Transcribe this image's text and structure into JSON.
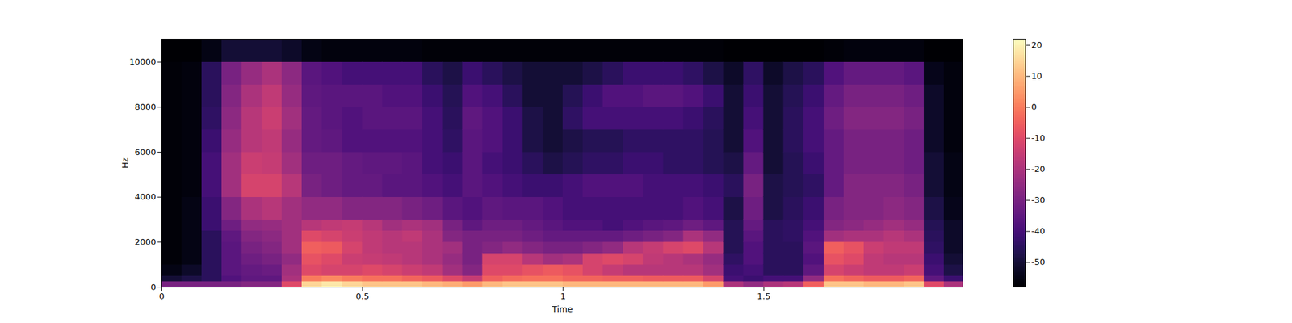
{
  "chart_data": {
    "type": "heatmap",
    "x_label": "Time",
    "y_label": "Hz",
    "xlim": [
      0,
      1.996
    ],
    "ylim": [
      0,
      11025
    ],
    "xticks": [
      0,
      0.5,
      1,
      1.5
    ],
    "yticks": [
      0,
      2000,
      4000,
      6000,
      8000,
      10000
    ],
    "x_edges": [
      0,
      0.05,
      0.1,
      0.15,
      0.2,
      0.25,
      0.3,
      0.35,
      0.4,
      0.45,
      0.5,
      0.55,
      0.6,
      0.65,
      0.7,
      0.75,
      0.8,
      0.85,
      0.9,
      0.95,
      1.0,
      1.05,
      1.1,
      1.15,
      1.2,
      1.25,
      1.3,
      1.35,
      1.4,
      1.45,
      1.5,
      1.55,
      1.6,
      1.65,
      1.7,
      1.75,
      1.8,
      1.85,
      1.9,
      1.95,
      1.996
    ],
    "y_edges": [
      0,
      250,
      500,
      1000,
      1500,
      2000,
      2500,
      3000,
      4000,
      5000,
      6000,
      7000,
      8000,
      9000,
      10000,
      11025
    ],
    "cells": [
      [
        -30,
        -50,
        -55,
        -57,
        -57,
        -57,
        -57,
        -57,
        -57,
        -57,
        -57,
        -57,
        -57,
        -57,
        -58
      ],
      [
        -30,
        -48,
        -52,
        -55,
        -55,
        -55,
        -55,
        -55,
        -56,
        -56,
        -56,
        -56,
        -56,
        -56,
        -58
      ],
      [
        -30,
        -45,
        -45,
        -45,
        -45,
        -45,
        -42,
        -42,
        -40,
        -40,
        -42,
        -44,
        -45,
        -45,
        -55
      ],
      [
        -30,
        -38,
        -36,
        -36,
        -36,
        -35,
        -32,
        -28,
        -22,
        -22,
        -24,
        -26,
        -28,
        -30,
        -50
      ],
      [
        -28,
        -35,
        -34,
        -32,
        -30,
        -28,
        -25,
        -20,
        -12,
        -14,
        -18,
        -18,
        -20,
        -24,
        -50
      ],
      [
        -28,
        -35,
        -33,
        -30,
        -28,
        -26,
        -24,
        -18,
        -12,
        -15,
        -16,
        -14,
        -16,
        -20,
        -50
      ],
      [
        -10,
        -20,
        -22,
        -25,
        -22,
        -22,
        -22,
        -22,
        -18,
        -22,
        -24,
        -22,
        -24,
        -26,
        -52
      ],
      [
        15,
        0,
        -10,
        -8,
        -5,
        -10,
        -18,
        -25,
        -30,
        -32,
        -34,
        -34,
        -35,
        -36,
        -55
      ],
      [
        18,
        2,
        -12,
        -10,
        -6,
        -12,
        -16,
        -25,
        -32,
        -32,
        -35,
        -36,
        -36,
        -38,
        -56
      ],
      [
        15,
        0,
        -12,
        -14,
        -12,
        -14,
        -15,
        -28,
        -34,
        -34,
        -38,
        -38,
        -36,
        -40,
        -56
      ],
      [
        12,
        -2,
        -10,
        -15,
        -16,
        -16,
        -18,
        -28,
        -34,
        -35,
        -38,
        -36,
        -36,
        -40,
        -56
      ],
      [
        12,
        -2,
        -12,
        -16,
        -18,
        -18,
        -22,
        -28,
        -36,
        -35,
        -38,
        -36,
        -38,
        -40,
        -56
      ],
      [
        12,
        -4,
        -14,
        -18,
        -18,
        -16,
        -20,
        -30,
        -36,
        -36,
        -38,
        -36,
        -38,
        -40,
        -56
      ],
      [
        10,
        -6,
        -16,
        -20,
        -20,
        -20,
        -22,
        -32,
        -38,
        -40,
        -40,
        -40,
        -42,
        -45,
        -57
      ],
      [
        8,
        -10,
        -22,
        -24,
        -22,
        -28,
        -30,
        -36,
        -40,
        -42,
        -44,
        -45,
        -46,
        -48,
        -57
      ],
      [
        5,
        -15,
        -28,
        -30,
        -30,
        -30,
        -35,
        -38,
        -36,
        -36,
        -36,
        -35,
        -38,
        -42,
        -57
      ],
      [
        10,
        -5,
        -10,
        -12,
        -28,
        -30,
        -32,
        -35,
        -38,
        -40,
        -38,
        -38,
        -40,
        -45,
        -57
      ],
      [
        12,
        -3,
        -10,
        -12,
        -25,
        -30,
        -32,
        -36,
        -40,
        -42,
        -42,
        -42,
        -45,
        -48,
        -57
      ],
      [
        12,
        -2,
        -8,
        -18,
        -28,
        -32,
        -34,
        -36,
        -42,
        -45,
        -48,
        -48,
        -50,
        -50,
        -57
      ],
      [
        12,
        -2,
        -6,
        -22,
        -30,
        -34,
        -36,
        -38,
        -42,
        -48,
        -50,
        -50,
        -50,
        -50,
        -57
      ],
      [
        10,
        -4,
        -8,
        -20,
        -30,
        -34,
        -38,
        -40,
        -40,
        -46,
        -48,
        -44,
        -46,
        -50,
        -57
      ],
      [
        10,
        -4,
        -12,
        -12,
        -28,
        -34,
        -38,
        -40,
        -38,
        -44,
        -46,
        -40,
        -42,
        -48,
        -57
      ],
      [
        10,
        -5,
        -15,
        -10,
        -25,
        -34,
        -40,
        -40,
        -38,
        -44,
        -46,
        -40,
        -38,
        -45,
        -57
      ],
      [
        10,
        -5,
        -18,
        -12,
        -18,
        -32,
        -38,
        -40,
        -38,
        -42,
        -44,
        -40,
        -38,
        -42,
        -57
      ],
      [
        10,
        -6,
        -18,
        -16,
        -15,
        -30,
        -36,
        -40,
        -40,
        -42,
        -44,
        -40,
        -36,
        -42,
        -57
      ],
      [
        10,
        -6,
        -18,
        -18,
        -12,
        -28,
        -35,
        -40,
        -40,
        -44,
        -44,
        -40,
        -36,
        -42,
        -57
      ],
      [
        10,
        -6,
        -18,
        -20,
        -10,
        -20,
        -32,
        -38,
        -40,
        -44,
        -44,
        -42,
        -38,
        -44,
        -57
      ],
      [
        5,
        -12,
        -22,
        -24,
        -18,
        -25,
        -35,
        -40,
        -42,
        -46,
        -46,
        -45,
        -42,
        -48,
        -57
      ],
      [
        -20,
        -40,
        -42,
        -44,
        -46,
        -46,
        -46,
        -48,
        -45,
        -48,
        -50,
        -50,
        -50,
        -52,
        -58
      ],
      [
        -25,
        -42,
        -40,
        -38,
        -38,
        -36,
        -34,
        -32,
        -30,
        -34,
        -38,
        -40,
        -42,
        -44,
        -58
      ],
      [
        -20,
        -40,
        -45,
        -45,
        -45,
        -45,
        -45,
        -48,
        -48,
        -50,
        -50,
        -50,
        -50,
        -52,
        -58
      ],
      [
        -18,
        -40,
        -45,
        -45,
        -45,
        -44,
        -44,
        -45,
        -46,
        -46,
        -45,
        -45,
        -46,
        -48,
        -58
      ],
      [
        -5,
        -25,
        -35,
        -38,
        -36,
        -38,
        -40,
        -42,
        -44,
        -42,
        -40,
        -40,
        -42,
        -45,
        -58
      ],
      [
        12,
        -2,
        -12,
        -8,
        -5,
        -22,
        -28,
        -30,
        -34,
        -34,
        -34,
        -32,
        -34,
        -38,
        -57
      ],
      [
        12,
        -4,
        -14,
        -10,
        -8,
        -20,
        -26,
        -28,
        -28,
        -30,
        -30,
        -28,
        -30,
        -34,
        -56
      ],
      [
        10,
        -6,
        -16,
        -16,
        -14,
        -20,
        -24,
        -28,
        -28,
        -30,
        -30,
        -28,
        -30,
        -34,
        -56
      ],
      [
        10,
        -6,
        -16,
        -18,
        -16,
        -18,
        -22,
        -26,
        -28,
        -30,
        -30,
        -28,
        -30,
        -34,
        -56
      ],
      [
        12,
        -4,
        -14,
        -18,
        -16,
        -20,
        -24,
        -28,
        -30,
        -32,
        -32,
        -30,
        -32,
        -36,
        -56
      ],
      [
        -10,
        -35,
        -40,
        -42,
        -44,
        -45,
        -46,
        -48,
        -50,
        -50,
        -52,
        -52,
        -52,
        -54,
        -58
      ],
      [
        -20,
        -42,
        -48,
        -50,
        -52,
        -52,
        -52,
        -54,
        -55,
        -55,
        -56,
        -56,
        -56,
        -56,
        -58
      ]
    ],
    "colorbar": {
      "range": [
        -58,
        22
      ],
      "ticks": [
        -50,
        -40,
        -30,
        -20,
        -10,
        0,
        10,
        20
      ]
    }
  }
}
